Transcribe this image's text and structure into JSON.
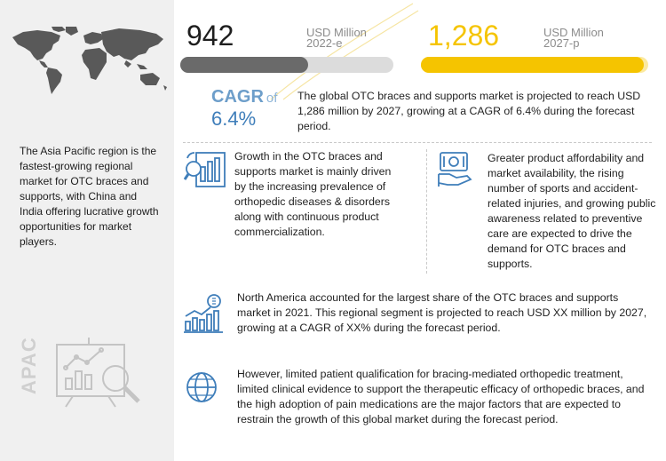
{
  "apac": {
    "description": "The Asia Pacific region is the fastest-growing regional market for OTC braces and supports, with China and India offering lucrative growth opportunities for market players.",
    "vertical_label": "APAC"
  },
  "stats": {
    "current": {
      "value": "942",
      "unit": "USD Million",
      "year": "2022-e",
      "bar_fill": 0.6
    },
    "projected": {
      "value": "1,286",
      "unit": "USD Million",
      "year": "2027-p",
      "bar_fill": 0.98
    }
  },
  "cagr": {
    "label": "CAGR",
    "of": "of",
    "value": "6.4%",
    "summary": "The global OTC braces and supports market is projected to reach USD 1,286 million by 2027, growing at a CAGR of 6.4% during the forecast period."
  },
  "drivers": {
    "growth": "Growth in the OTC braces and supports market is mainly driven by the increasing prevalence of orthopedic diseases & disorders along with continuous product commercialization.",
    "affordability": "Greater product affordability and market availability, the rising number of sports and accident-related injuries, and growing public awareness related to preventive care are expected to drive the demand for OTC braces and supports."
  },
  "north_america": "North America accounted for the largest share of the OTC braces and supports market in 2021. This regional segment is projected to reach USD XX million by 2027, growing at a CAGR of XX% during the forecast period.",
  "restraints": "However, limited patient qualification for bracing-mediated orthopedic treatment, limited clinical evidence to support the therapeutic efficacy of orthopedic braces, and the high adoption of pain medications are the major factors that are expected to restrain the growth of this global market during the forecast period.",
  "colors": {
    "sidebar_bg": "#f0f0f0",
    "map": "#595959",
    "current_bar": "#6a6a6a",
    "projected_bar": "#f5c400",
    "projected_number": "#f5c400",
    "cagr_blue": "#3f7eba",
    "icon_blue": "#3f7eba"
  }
}
